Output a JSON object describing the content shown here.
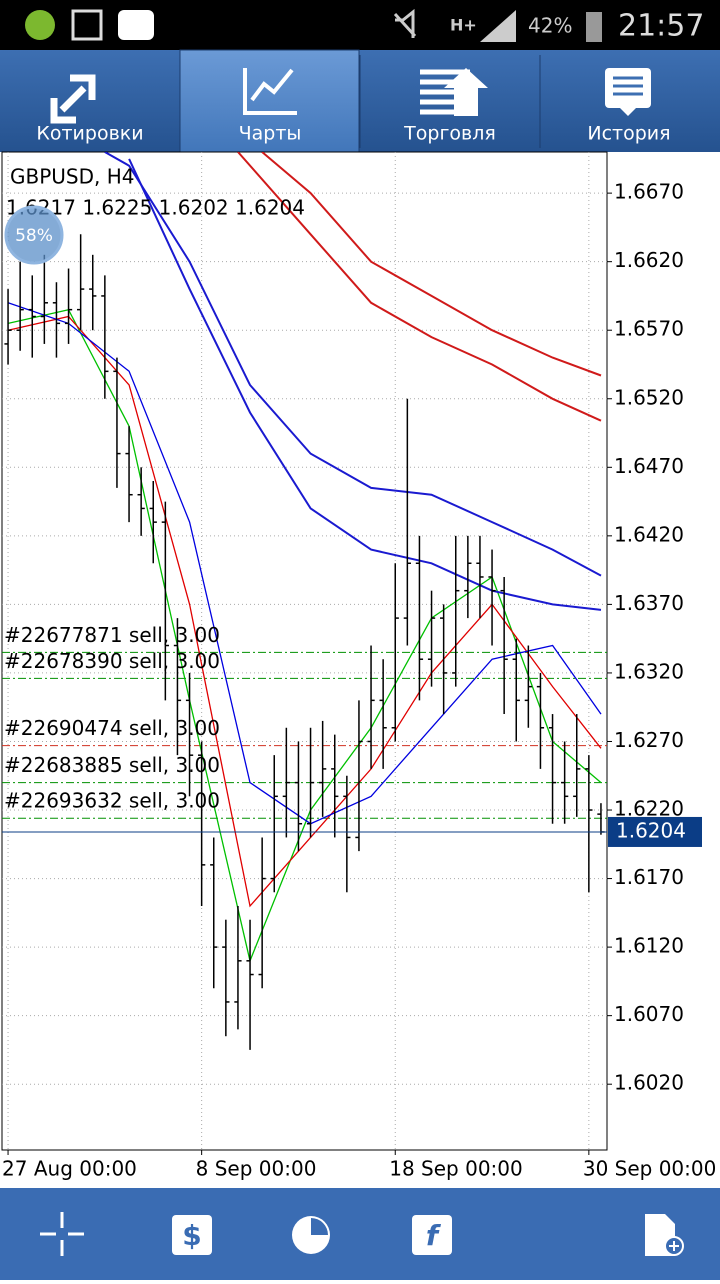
{
  "status_bar": {
    "battery": "42%",
    "time": "21:57"
  },
  "tabs": [
    "Котировки",
    "Чарты",
    "Торговля",
    "История"
  ],
  "chart_data": {
    "type": "ohlc",
    "symbol": "GBPUSD, H4",
    "ohlc_text": "1.6217 1.6225 1.6202 1.6204",
    "badge": "58%",
    "bar_color": "#000000",
    "open": [
      1.656,
      1.657,
      1.6585,
      1.658,
      1.659,
      1.6575,
      1.6585,
      1.66,
      1.6595,
      1.654,
      1.648,
      1.645,
      1.644,
      1.643,
      1.634,
      1.63,
      1.626,
      1.618,
      1.612,
      1.608,
      1.611,
      1.61,
      1.617,
      1.623,
      1.624,
      1.621,
      1.624,
      1.625,
      1.623,
      1.62,
      1.627,
      1.63,
      1.628,
      1.636,
      1.64,
      1.633,
      1.636,
      1.632,
      1.638,
      1.64,
      1.639,
      1.638,
      1.633,
      1.63,
      1.631,
      1.628,
      1.624,
      1.623,
      1.625,
      1.6217
    ],
    "high": [
      1.66,
      1.662,
      1.661,
      1.6625,
      1.6605,
      1.6615,
      1.664,
      1.6625,
      1.661,
      1.655,
      1.65,
      1.647,
      1.646,
      1.6445,
      1.636,
      1.632,
      1.627,
      1.62,
      1.614,
      1.615,
      1.614,
      1.62,
      1.626,
      1.628,
      1.627,
      1.628,
      1.6285,
      1.6275,
      1.6245,
      1.63,
      1.634,
      1.633,
      1.64,
      1.652,
      1.642,
      1.638,
      1.637,
      1.642,
      1.642,
      1.642,
      1.641,
      1.639,
      1.6345,
      1.634,
      1.632,
      1.629,
      1.627,
      1.629,
      1.626,
      1.6225
    ],
    "low": [
      1.6545,
      1.6555,
      1.655,
      1.656,
      1.655,
      1.656,
      1.657,
      1.657,
      1.652,
      1.6455,
      1.643,
      1.642,
      1.64,
      1.63,
      1.626,
      1.623,
      1.615,
      1.609,
      1.6055,
      1.606,
      1.6045,
      1.609,
      1.616,
      1.62,
      1.619,
      1.62,
      1.6215,
      1.62,
      1.616,
      1.619,
      1.625,
      1.625,
      1.627,
      1.634,
      1.63,
      1.631,
      1.629,
      1.631,
      1.636,
      1.636,
      1.634,
      1.629,
      1.627,
      1.628,
      1.625,
      1.621,
      1.621,
      1.6215,
      1.616,
      1.6202
    ],
    "close": [
      1.657,
      1.6585,
      1.658,
      1.659,
      1.6575,
      1.6585,
      1.66,
      1.6595,
      1.654,
      1.648,
      1.645,
      1.644,
      1.643,
      1.634,
      1.63,
      1.626,
      1.618,
      1.612,
      1.608,
      1.611,
      1.61,
      1.617,
      1.623,
      1.624,
      1.621,
      1.624,
      1.625,
      1.623,
      1.62,
      1.627,
      1.63,
      1.628,
      1.636,
      1.64,
      1.633,
      1.636,
      1.632,
      1.638,
      1.64,
      1.639,
      1.638,
      1.633,
      1.63,
      1.631,
      1.628,
      1.624,
      1.623,
      1.625,
      1.622,
      1.6204
    ],
    "xlim": [
      -0.5,
      49.5
    ],
    "xticks": [
      {
        "value": 0,
        "label": "27 Aug 00:00"
      },
      {
        "value": 16,
        "label": "8 Sep 00:00"
      },
      {
        "value": 32,
        "label": "18 Sep 00:00"
      },
      {
        "value": 48,
        "label": "30 Sep 00:00"
      }
    ],
    "ylim": [
      1.5972,
      1.67
    ],
    "yticks": [
      {
        "value": 1.667,
        "label": "1.6670"
      },
      {
        "value": 1.662,
        "label": "1.6620"
      },
      {
        "value": 1.657,
        "label": "1.6570"
      },
      {
        "value": 1.652,
        "label": "1.6520"
      },
      {
        "value": 1.647,
        "label": "1.6470"
      },
      {
        "value": 1.642,
        "label": "1.6420"
      },
      {
        "value": 1.637,
        "label": "1.6370"
      },
      {
        "value": 1.632,
        "label": "1.6320"
      },
      {
        "value": 1.627,
        "label": "1.6270"
      },
      {
        "value": 1.622,
        "label": "1.6220"
      },
      {
        "value": 1.617,
        "label": "1.6170"
      },
      {
        "value": 1.612,
        "label": "1.6120"
      },
      {
        "value": 1.607,
        "label": "1.6070"
      },
      {
        "value": 1.602,
        "label": "1.6020"
      }
    ],
    "grid": true,
    "indicators": [
      {
        "color": "#00c000",
        "x": [
          0,
          5,
          10,
          15,
          20,
          25,
          30,
          35,
          40,
          45,
          49
        ],
        "values": [
          1.6575,
          1.6585,
          1.65,
          1.63,
          1.611,
          1.622,
          1.628,
          1.636,
          1.639,
          1.627,
          1.624
        ]
      },
      {
        "color": "#e00000",
        "x": [
          0,
          5,
          10,
          15,
          20,
          25,
          30,
          35,
          40,
          45,
          49
        ],
        "values": [
          1.657,
          1.658,
          1.653,
          1.637,
          1.615,
          1.62,
          1.625,
          1.632,
          1.637,
          1.631,
          1.6265
        ]
      },
      {
        "color": "#0000e0",
        "x": [
          0,
          5,
          10,
          15,
          20,
          25,
          30,
          35,
          40,
          45,
          49
        ],
        "values": [
          1.659,
          1.6575,
          1.654,
          1.643,
          1.624,
          1.621,
          1.623,
          1.628,
          1.633,
          1.634,
          1.629
        ]
      },
      {
        "color": "#1a1ad0",
        "x": [
          8,
          10,
          15,
          20,
          25,
          30,
          35,
          40,
          45,
          49
        ],
        "values": [
          1.67,
          1.669,
          1.662,
          1.653,
          1.648,
          1.6455,
          1.645,
          1.643,
          1.641,
          1.6391
        ]
      },
      {
        "color": "#1a1ad0",
        "x": [
          10,
          15,
          20,
          25,
          30,
          35,
          40,
          45,
          49
        ],
        "values": [
          1.6695,
          1.66,
          1.651,
          1.644,
          1.641,
          1.64,
          1.638,
          1.637,
          1.6366
        ]
      },
      {
        "color": "#d01a1a",
        "x": [
          21,
          25,
          30,
          35,
          40,
          45,
          49
        ],
        "values": [
          1.67,
          1.667,
          1.662,
          1.6595,
          1.657,
          1.655,
          1.6537
        ]
      },
      {
        "color": "#d01a1a",
        "x": [
          19,
          25,
          30,
          35,
          40,
          45,
          49
        ],
        "values": [
          1.67,
          1.664,
          1.659,
          1.6565,
          1.6545,
          1.652,
          1.6504
        ]
      }
    ],
    "orders": [
      {
        "label": "#22677871 sell, 3.00",
        "price": 1.6335,
        "color": "#009000"
      },
      {
        "label": "#22678390 sell, 3.00",
        "price": 1.6316,
        "color": "#009000"
      },
      {
        "label": "#22690474 sell, 3.00",
        "price": 1.6267,
        "color": "#d03020"
      },
      {
        "label": "#22683885 sell, 3.00",
        "price": 1.624,
        "color": "#009000"
      },
      {
        "label": "#22693632 sell, 3.00",
        "price": 1.6214,
        "color": "#009000"
      }
    ],
    "current_price": 1.6204,
    "current_price_color": "#0b3d86"
  }
}
